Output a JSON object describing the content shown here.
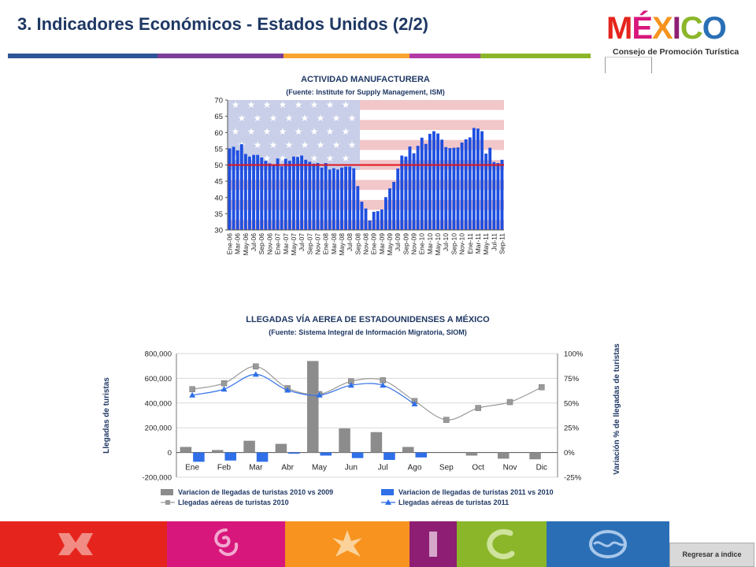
{
  "slide": {
    "title": "3. Indicadores Económicos - Estados Unidos (2/2)"
  },
  "logo": {
    "word": "MÉXICO",
    "subtitle": "Consejo de Promoción Turística"
  },
  "footer": {
    "return_label": "Regresar a índice",
    "band_colors": [
      "#e5251d",
      "#d8177c",
      "#f7931e",
      "#8e1e73",
      "#8bb62a",
      "#2a6fb6"
    ]
  },
  "chart_data": [
    {
      "type": "bar",
      "title": "ACTIVIDAD MANUFACTURERA",
      "subtitle": "(Fuente: Institute for Supply Management, ISM)",
      "ylim": [
        30,
        70
      ],
      "yticks": [
        30,
        35,
        40,
        45,
        50,
        55,
        60,
        65,
        70
      ],
      "reference_line": 50,
      "bar_color": "#1f4fe0",
      "line_color": "#e0141e",
      "background": "US flag",
      "categories": [
        "Ene-06",
        "Feb-06",
        "Mar-06",
        "Abr-06",
        "May-06",
        "Jun-06",
        "Jul-06",
        "Ago-06",
        "Sep-06",
        "Oct-06",
        "Nov-06",
        "Dic-06",
        "Ene-07",
        "Feb-07",
        "Mar-07",
        "Abr-07",
        "May-07",
        "Jun-07",
        "Jul-07",
        "Ago-07",
        "Sep-07",
        "Oct-07",
        "Nov-07",
        "Dic-07",
        "Ene-08",
        "Feb-08",
        "Mar-08",
        "Abr-08",
        "May-08",
        "Jun-08",
        "Jul-08",
        "Ago-08",
        "Sep-08",
        "Oct-08",
        "Nov-08",
        "Dic-08",
        "Ene-09",
        "Feb-09",
        "Mar-09",
        "Abr-09",
        "May-09",
        "Jun-09",
        "Jul-09",
        "Ago-09",
        "Sep-09",
        "Oct-09",
        "Nov-09",
        "Dic-09",
        "Ene-10",
        "Feb-10",
        "Mar-10",
        "Abr-10",
        "May-10",
        "Jun-10",
        "Jul-10",
        "Ago-10",
        "Sep-10",
        "Oct-10",
        "Nov-10",
        "Dic-10",
        "Ene-11",
        "Feb-11",
        "Mar-11",
        "Abr-11",
        "May-11",
        "Jun-11",
        "Jul-11",
        "Ago-11",
        "Sep-11"
      ],
      "tick_labels": [
        "Ene-06",
        "Mar-06",
        "May-06",
        "Jul-06",
        "Sep-06",
        "Nov-06",
        "Ene-07",
        "Mar-07",
        "May-07",
        "Jul-07",
        "Sep-07",
        "Nov-07",
        "Ene-08",
        "Mar-08",
        "May-08",
        "Jul-08",
        "Sep-08",
        "Nov-08",
        "Ene-09",
        "Mar-09",
        "May-09",
        "Jul-09",
        "Sep-09",
        "Nov-09",
        "Ene-10",
        "Mar-10",
        "May-10",
        "Jul-10",
        "Sep-10",
        "Nov-10",
        "Ene-11",
        "Mar-11",
        "May-11",
        "Jul-11",
        "Sep-11"
      ],
      "values": [
        55.1,
        55.6,
        54.5,
        56.4,
        53.4,
        52.6,
        53.1,
        53.1,
        52.3,
        51.3,
        50.5,
        50.0,
        52.0,
        49.6,
        51.9,
        51.3,
        52.6,
        52.5,
        52.9,
        51.6,
        51.0,
        50.4,
        50.6,
        49.2,
        50.6,
        48.6,
        49.0,
        48.6,
        49.2,
        49.5,
        49.5,
        49.0,
        43.5,
        38.7,
        36.6,
        32.9,
        35.6,
        35.8,
        36.3,
        40.1,
        42.8,
        44.8,
        48.9,
        52.9,
        52.6,
        55.7,
        53.6,
        55.9,
        58.4,
        56.5,
        59.6,
        60.4,
        59.7,
        57.8,
        55.5,
        55.2,
        55.3,
        55.4,
        56.9,
        57.9,
        58.5,
        61.4,
        61.2,
        60.4,
        53.5,
        55.3,
        50.9,
        50.6,
        51.6
      ]
    },
    {
      "type": "bar",
      "title": "LLEGADAS VÍA AEREA DE ESTADOUNIDENSES A MÉXICO",
      "subtitle": "(Fuente: Sistema Integral de Información Migratoria, SIOM)",
      "ylabel": "Llegadas de turistas",
      "ylabel_right": "Variación % de llegadas de turistas",
      "ylim": [
        -200000,
        800000
      ],
      "yticks": [
        "-200,000",
        "0",
        "200,000",
        "400,000",
        "600,000",
        "800,000"
      ],
      "yticks_values": [
        -200000,
        0,
        200000,
        400000,
        600000,
        800000
      ],
      "ylim_right": [
        -25,
        100
      ],
      "yticks_right": [
        "-25%",
        "0%",
        "25%",
        "50%",
        "75%",
        "100%"
      ],
      "yticks_right_values": [
        -25,
        0,
        25,
        50,
        75,
        100
      ],
      "categories": [
        "Ene",
        "Feb",
        "Mar",
        "Abr",
        "May",
        "Jun",
        "Jul",
        "Ago",
        "Sep",
        "Oct",
        "Nov",
        "Dic"
      ],
      "series": [
        {
          "name": "Variacion de llegadas de turistas  2010 vs 2009",
          "kind": "bar",
          "axis": "left",
          "color": "#8c8c8c",
          "values": [
            45000,
            20000,
            95000,
            70000,
            740000,
            195000,
            165000,
            45000,
            null,
            -25000,
            -50000,
            -55000
          ]
        },
        {
          "name": "Variacion de llegadas de turistas  2011 vs 2010",
          "kind": "bar",
          "axis": "left",
          "color": "#2f6fe8",
          "values": [
            -75000,
            -65000,
            -75000,
            -10000,
            -25000,
            -45000,
            -60000,
            -40000,
            null,
            null,
            null,
            null
          ]
        },
        {
          "name": "Llegadas aéreas de turistas 2010",
          "kind": "line",
          "marker": "square",
          "axis": "right",
          "color": "#999999",
          "values": [
            64,
            70,
            87,
            65,
            59,
            72,
            73,
            52,
            33,
            45,
            51,
            66
          ]
        },
        {
          "name": "Llegadas aéreas de turistas 2011",
          "kind": "line",
          "marker": "triangle",
          "axis": "right",
          "color": "#2f6fe8",
          "values": [
            58,
            64,
            79,
            63,
            58,
            68,
            68,
            49,
            null,
            null,
            null,
            null
          ]
        }
      ]
    }
  ]
}
